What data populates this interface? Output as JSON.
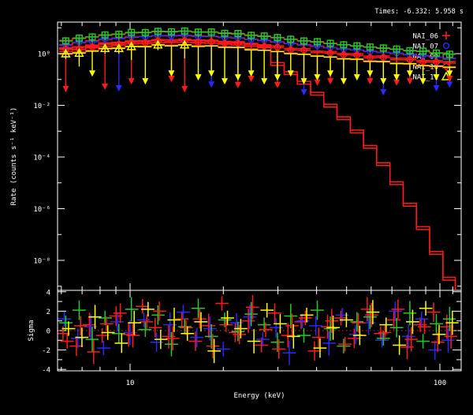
{
  "window": {
    "background": "#000000",
    "frame_color": "#ffffff",
    "times_label": "Times: -6.332: 5.958 s"
  },
  "chart_data": [
    {
      "id": "count-spectrum",
      "type": "scatter",
      "title": "Times: -6.332: 5.958 s",
      "xlabel": "Energy (keV)",
      "ylabel": "Rate (counts s⁻¹ keV⁻¹)",
      "xscale": "log",
      "yscale": "log",
      "xlim": [
        5.83,
        117
      ],
      "ylim": [
        7e-10,
        16.6
      ],
      "x_ticks": {
        "major": [
          10,
          100
        ],
        "major_labels": [
          "10",
          "100"
        ],
        "minor": [
          6,
          7,
          8,
          9,
          20,
          30,
          40,
          50,
          60,
          70,
          80,
          90,
          110
        ]
      },
      "y_ticks": {
        "major_exponents": [
          0,
          -2,
          -4,
          -6,
          -8
        ],
        "major_labels": [
          "10⁰",
          "10⁻²",
          "10⁻⁴",
          "10⁻⁶",
          "10⁻⁸"
        ],
        "minor_exponents": [
          1,
          -1,
          -3,
          -5,
          -7,
          -9
        ]
      },
      "model_color": "#ff1a1a",
      "energies": [
        6.2,
        6.85,
        7.55,
        8.3,
        9.2,
        10.1,
        11.2,
        12.3,
        13.6,
        15.0,
        16.6,
        18.3,
        20.2,
        22.3,
        24.6,
        27.1,
        29.9,
        33.0,
        36.4,
        40.2,
        44.3,
        48.9,
        54.0,
        59.5,
        65.7,
        72.5,
        80.0,
        88.2,
        97.4,
        107.5
      ],
      "base_model": [
        1.55,
        1.85,
        2.15,
        2.45,
        2.75,
        3.0,
        3.2,
        3.35,
        3.45,
        3.45,
        3.35,
        3.2,
        3.0,
        2.75,
        2.5,
        2.2,
        1.95,
        1.7,
        1.5,
        1.32,
        1.18,
        1.05,
        0.95,
        0.85,
        0.77,
        0.7,
        0.63,
        0.57,
        0.51,
        0.46
      ],
      "cutoff_model": {
        "energies": [
          29.9,
          33,
          36.4,
          40.2,
          44.3,
          48.9,
          54,
          59.5,
          65.7,
          72.5,
          80,
          88.2,
          97.4,
          107.5,
          117
        ],
        "rates": [
          0.45,
          0.2,
          0.085,
          0.032,
          0.011,
          0.0036,
          0.0011,
          0.00028,
          6e-05,
          1.1e-05,
          1.6e-06,
          2e-07,
          2.2e-08,
          2.2e-09,
          2e-10
        ]
      },
      "series": [
        {
          "name": "NAI_06",
          "color": "#ff1a1a",
          "marker": "plus",
          "model_scale": 1.0,
          "model_cutoff": true,
          "limit_floor": 0.08,
          "rates": [
            1.7,
            1.75,
            2.0,
            2.6,
            2.6,
            3.1,
            3.0,
            3.5,
            3.3,
            3.6,
            3.1,
            3.3,
            2.8,
            2.9,
            2.3,
            2.1,
            2.0,
            1.6,
            1.55,
            1.25,
            1.2,
            1.0,
            0.99,
            0.8,
            0.81,
            0.66,
            0.66,
            0.54,
            0.53,
            0.49
          ],
          "upper_limit_channels": [
            0,
            5,
            9,
            13,
            16,
            20,
            23,
            26
          ]
        },
        {
          "name": "NAI_07",
          "color": "#2828ff",
          "marker": "circle",
          "model_scale": 1.45,
          "model_cutoff": false,
          "limit_floor": 0.06,
          "rates": [
            2.1,
            2.8,
            2.9,
            3.7,
            3.8,
            4.6,
            4.5,
            5.0,
            4.8,
            5.2,
            4.6,
            4.8,
            4.2,
            4.1,
            3.5,
            3.3,
            2.9,
            2.5,
            2.1,
            2.0,
            1.7,
            1.5,
            1.4,
            1.2,
            1.1,
            1.05,
            0.9,
            0.85,
            0.72,
            0.65
          ],
          "upper_limit_channels": [
            4,
            11,
            18,
            24,
            28,
            29
          ]
        },
        {
          "name": "NAI_09",
          "color": "#22cc22",
          "marker": "square",
          "model_scale": 2.1,
          "model_cutoff": false,
          "limit_floor": 0.2,
          "rates": [
            3.1,
            4.0,
            4.4,
            5.3,
            5.6,
            6.6,
            6.5,
            7.3,
            7.0,
            7.5,
            6.8,
            6.9,
            6.1,
            6.0,
            5.1,
            4.8,
            4.2,
            3.6,
            3.1,
            2.9,
            2.5,
            2.2,
            2.0,
            1.8,
            1.65,
            1.5,
            1.3,
            1.25,
            1.05,
            0.95
          ],
          "upper_limit_channels": []
        },
        {
          "name": "NAI_10",
          "color": "#ff1a1a",
          "marker": "diamond",
          "model_scale": 0.78,
          "model_cutoff": true,
          "limit_floor": 0.1,
          "rates": [
            1.5,
            1.5,
            1.8,
            2.3,
            2.3,
            2.7,
            2.6,
            3.1,
            2.9,
            3.2,
            2.7,
            2.9,
            2.5,
            2.5,
            2.0,
            1.9,
            1.75,
            1.4,
            1.35,
            1.1,
            1.05,
            0.9,
            0.87,
            0.7,
            0.71,
            0.58,
            0.58,
            0.48,
            0.47,
            0.43
          ],
          "upper_limit_channels": [
            3,
            8,
            14,
            19,
            25,
            29
          ]
        },
        {
          "name": "NAI_11",
          "color": "#ffff00",
          "marker": "triangle",
          "model_scale": 0.62,
          "model_cutoff": false,
          "limit_floor": 0.16,
          "rates": [
            1.0,
            1.05,
            1.25,
            1.6,
            1.6,
            1.9,
            1.85,
            2.2,
            2.0,
            2.2,
            1.9,
            2.0,
            1.75,
            1.75,
            1.4,
            1.35,
            1.2,
            1.0,
            0.95,
            0.8,
            0.74,
            0.63,
            0.61,
            0.5,
            0.5,
            0.41,
            0.41,
            0.34,
            0.33,
            0.3
          ],
          "upper_limit_channels": [
            2,
            6,
            8,
            10,
            11,
            12,
            13,
            14,
            15,
            16,
            17,
            18,
            19,
            20,
            21,
            22,
            23,
            24,
            25,
            26,
            27,
            28,
            29
          ]
        }
      ],
      "legend": {
        "entries": [
          "NAI_06",
          "NAI_07",
          "NAI_09",
          "NAI_10",
          "NAI_11"
        ]
      }
    },
    {
      "id": "residuals",
      "type": "scatter",
      "ylabel": "Sigma",
      "xlim": [
        5.83,
        117
      ],
      "ylim": [
        -4.3,
        4.3
      ],
      "y_ticks": {
        "major": [
          -4,
          -2,
          0,
          2,
          4
        ],
        "major_labels": [
          "-4",
          "-2",
          "0",
          "2",
          "4"
        ],
        "minor": [
          -3,
          -1,
          1,
          3
        ]
      },
      "zero_line": {
        "value": 0,
        "color": "#ff2020",
        "style": "dotted"
      },
      "err_pattern": [
        0.75,
        1.0,
        1.25
      ],
      "series": [
        {
          "name": "NAI_06",
          "color": "#ff1a1a",
          "sigma": [
            -0.3,
            -1.6,
            0.6,
            -0.5,
            1.5,
            -0.4,
            2.5,
            0.3,
            -0.6,
            1.2,
            -1.1,
            0.5,
            2.8,
            -0.2,
            1.0,
            -1.5,
            1.8,
            -0.5,
            0.9,
            -2.1,
            0.4,
            1.3,
            -0.8,
            2.2,
            -0.3,
            1.1,
            -1.7,
            0.6,
            1.9,
            0.4
          ]
        },
        {
          "name": "NAI_07",
          "color": "#2828ff",
          "sigma": [
            1.2,
            -0.8,
            0.4,
            -1.8,
            0.9,
            -0.2,
            1.1,
            -1.2,
            0.6,
            1.9,
            -0.7,
            0.2,
            -1.9,
            0.8,
            1.4,
            -0.9,
            0.3,
            -2.3,
            1.0,
            0.5,
            -1.3,
            1.6,
            -0.4,
            0.8,
            -1.0,
            2.0,
            -0.6,
            1.2,
            -2.0,
            -1.0
          ]
        },
        {
          "name": "NAI_09",
          "color": "#22cc22",
          "sigma": [
            0.8,
            2.1,
            -0.9,
            1.3,
            -0.3,
            2.2,
            0.1,
            1.6,
            -1.4,
            0.4,
            2.3,
            -0.6,
            1.1,
            -0.1,
            1.7,
            0.6,
            -1.2,
            1.5,
            -0.5,
            2.1,
            0.2,
            -1.6,
            0.9,
            1.4,
            -0.8,
            0.3,
            1.8,
            -1.1,
            0.7,
            1.2
          ]
        },
        {
          "name": "NAI_10",
          "color": "#ff1a1a",
          "sigma": [
            -1.1,
            0.5,
            -2.2,
            0.7,
            1.8,
            -0.5,
            0.9,
            2.0,
            -0.8,
            0.3,
            1.2,
            -1.6,
            0.6,
            -0.4,
            2.4,
            0.1,
            -1.9,
            0.5,
            1.3,
            -0.7,
            1.0,
            -1.4,
            0.8,
            1.6,
            -0.2,
            2.2,
            -0.9,
            0.4,
            -1.2,
            -0.6
          ]
        },
        {
          "name": "NAI_11",
          "color": "#ffff00",
          "sigma": [
            0.2,
            -0.7,
            1.4,
            -0.2,
            -1.3,
            0.8,
            2.2,
            -0.9,
            1.1,
            -0.3,
            0.9,
            -2.1,
            1.3,
            0.2,
            -1.1,
            2.1,
            0.7,
            -0.6,
            1.6,
            -1.8,
            0.3,
            1.1,
            -0.5,
            1.9,
            0.6,
            -1.5,
            0.9,
            2.3,
            -0.4,
            0.8
          ]
        }
      ]
    }
  ]
}
